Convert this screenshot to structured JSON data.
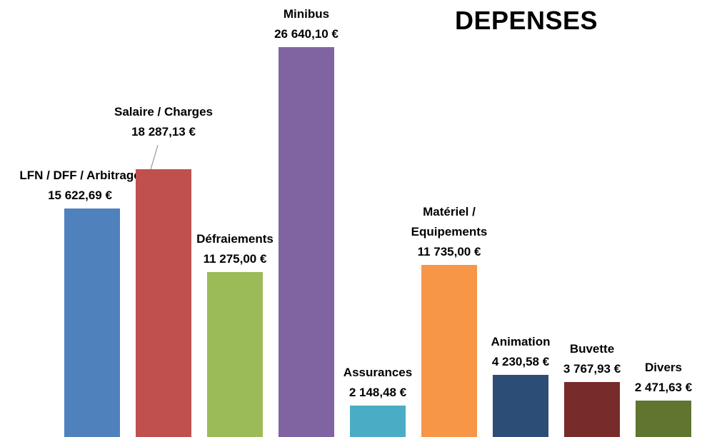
{
  "chart_data": {
    "type": "bar",
    "title": "DEPENSES",
    "categories": [
      "LFN / DFF / Arbitrage",
      "Salaire / Charges",
      "Défraiements",
      "Minibus",
      "Assurances",
      "Matériel / Equipements",
      "Animation",
      "Buvette",
      "Divers"
    ],
    "values": [
      15622.69,
      18287.13,
      11275.0,
      26640.1,
      2148.48,
      11735.0,
      4230.58,
      3767.93,
      2471.63
    ],
    "value_labels": [
      "15 622,69 €",
      "18 287,13 €",
      "11 275,00 €",
      "26 640,10 €",
      "2 148,48 €",
      "11 735,00 €",
      "4 230,58 €",
      "3 767,93 €",
      "2 471,63 €"
    ],
    "colors": [
      "#4f81bd",
      "#c0504d",
      "#9bbb59",
      "#8064a2",
      "#4bacc6",
      "#f79646",
      "#2c4d75",
      "#772c2a",
      "#5f7530"
    ]
  }
}
